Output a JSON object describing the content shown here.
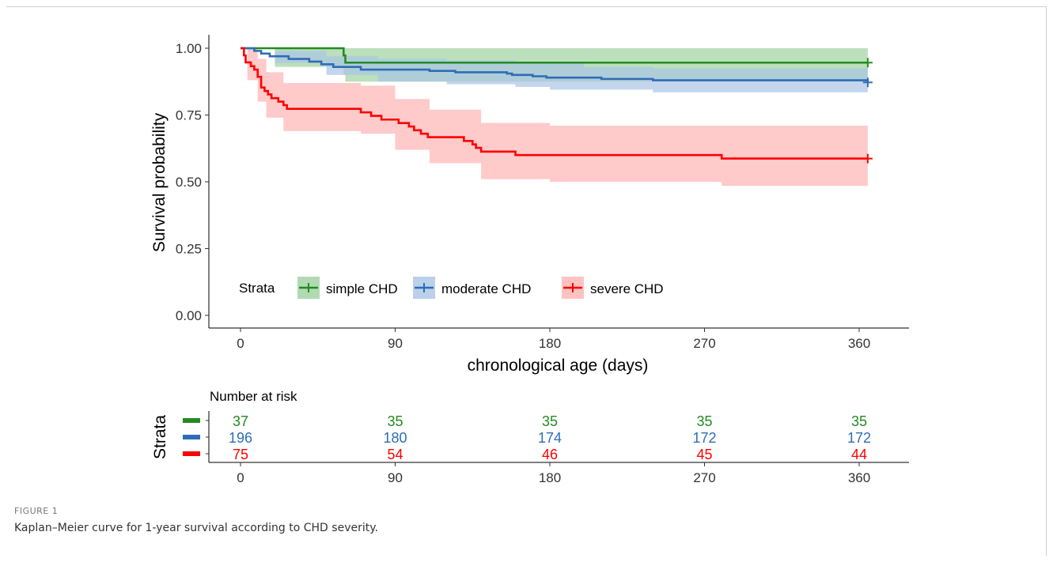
{
  "figure": {
    "label": "FIGURE 1",
    "caption": "Kaplan–Meier curve for 1-year survival according to CHD severity."
  },
  "chart_data": {
    "type": "line",
    "subtype": "kaplan-meier",
    "xlabel": "chronological age (days)",
    "ylabel": "Survival probability",
    "xlim": [
      0,
      365
    ],
    "ylim": [
      0,
      1
    ],
    "x_ticks": [
      0,
      90,
      180,
      270,
      360
    ],
    "y_ticks": [
      "0.00",
      "0.25",
      "0.50",
      "0.75",
      "1.00"
    ],
    "grid": false,
    "legend": {
      "title": "Strata",
      "placement": "inside-bottom-left"
    },
    "series": [
      {
        "name": "simple CHD",
        "color": "#228b22",
        "band_color": "#9fd19f",
        "steps": [
          [
            0,
            1.0
          ],
          [
            60,
            0.973
          ],
          [
            61,
            0.946
          ],
          [
            365,
            0.946
          ]
        ],
        "lower": [
          [
            0,
            1.0
          ],
          [
            20,
            0.93
          ],
          [
            60,
            0.9
          ],
          [
            61,
            0.875
          ],
          [
            365,
            0.875
          ]
        ],
        "upper": [
          [
            0,
            1.0
          ],
          [
            365,
            1.0
          ]
        ]
      },
      {
        "name": "moderate CHD",
        "color": "#2e6db4",
        "band_color": "#a9c4e6",
        "steps": [
          [
            0,
            1.0
          ],
          [
            8,
            0.99
          ],
          [
            12,
            0.98
          ],
          [
            17,
            0.97
          ],
          [
            28,
            0.96
          ],
          [
            40,
            0.95
          ],
          [
            47,
            0.94
          ],
          [
            54,
            0.93
          ],
          [
            70,
            0.92
          ],
          [
            110,
            0.915
          ],
          [
            125,
            0.91
          ],
          [
            155,
            0.905
          ],
          [
            158,
            0.9
          ],
          [
            170,
            0.895
          ],
          [
            178,
            0.89
          ],
          [
            210,
            0.885
          ],
          [
            240,
            0.88
          ],
          [
            365,
            0.872
          ]
        ],
        "lower": [
          [
            0,
            1.0
          ],
          [
            20,
            0.945
          ],
          [
            50,
            0.9
          ],
          [
            80,
            0.875
          ],
          [
            120,
            0.865
          ],
          [
            160,
            0.855
          ],
          [
            180,
            0.845
          ],
          [
            240,
            0.835
          ],
          [
            365,
            0.83
          ]
        ],
        "upper": [
          [
            0,
            1.0
          ],
          [
            20,
            0.99
          ],
          [
            50,
            0.97
          ],
          [
            80,
            0.96
          ],
          [
            120,
            0.955
          ],
          [
            160,
            0.945
          ],
          [
            200,
            0.93
          ],
          [
            240,
            0.925
          ],
          [
            365,
            0.92
          ]
        ]
      },
      {
        "name": "severe CHD",
        "color": "#ff0000",
        "band_color": "#ffb3b3",
        "steps": [
          [
            0,
            1.0
          ],
          [
            2,
            0.973
          ],
          [
            3,
            0.947
          ],
          [
            6,
            0.933
          ],
          [
            8,
            0.92
          ],
          [
            10,
            0.893
          ],
          [
            12,
            0.853
          ],
          [
            14,
            0.84
          ],
          [
            16,
            0.827
          ],
          [
            18,
            0.813
          ],
          [
            22,
            0.8
          ],
          [
            25,
            0.787
          ],
          [
            27,
            0.773
          ],
          [
            70,
            0.76
          ],
          [
            76,
            0.747
          ],
          [
            82,
            0.733
          ],
          [
            92,
            0.72
          ],
          [
            98,
            0.707
          ],
          [
            101,
            0.693
          ],
          [
            105,
            0.68
          ],
          [
            109,
            0.667
          ],
          [
            130,
            0.653
          ],
          [
            135,
            0.64
          ],
          [
            137,
            0.627
          ],
          [
            140,
            0.613
          ],
          [
            160,
            0.6
          ],
          [
            180,
            0.6
          ],
          [
            280,
            0.587
          ],
          [
            365,
            0.587
          ]
        ],
        "lower": [
          [
            0,
            1.0
          ],
          [
            4,
            0.88
          ],
          [
            10,
            0.8
          ],
          [
            15,
            0.74
          ],
          [
            25,
            0.69
          ],
          [
            70,
            0.68
          ],
          [
            90,
            0.62
          ],
          [
            110,
            0.57
          ],
          [
            140,
            0.51
          ],
          [
            180,
            0.5
          ],
          [
            280,
            0.485
          ],
          [
            365,
            0.485
          ]
        ],
        "upper": [
          [
            0,
            1.0
          ],
          [
            4,
            1.0
          ],
          [
            10,
            0.96
          ],
          [
            15,
            0.91
          ],
          [
            25,
            0.87
          ],
          [
            70,
            0.86
          ],
          [
            90,
            0.81
          ],
          [
            110,
            0.77
          ],
          [
            140,
            0.72
          ],
          [
            180,
            0.71
          ],
          [
            280,
            0.71
          ],
          [
            365,
            0.71
          ]
        ]
      }
    ],
    "risk_table": {
      "title": "Number at risk",
      "ylabel": "Strata",
      "times": [
        0,
        90,
        180,
        270,
        360
      ],
      "rows": [
        {
          "color": "#228b22",
          "counts": [
            "37",
            "35",
            "35",
            "35",
            "35"
          ]
        },
        {
          "color": "#2e6db4",
          "counts": [
            "196",
            "180",
            "174",
            "172",
            "172"
          ]
        },
        {
          "color": "#ff0000",
          "counts": [
            "75",
            "54",
            "46",
            "45",
            "44"
          ]
        }
      ]
    }
  }
}
